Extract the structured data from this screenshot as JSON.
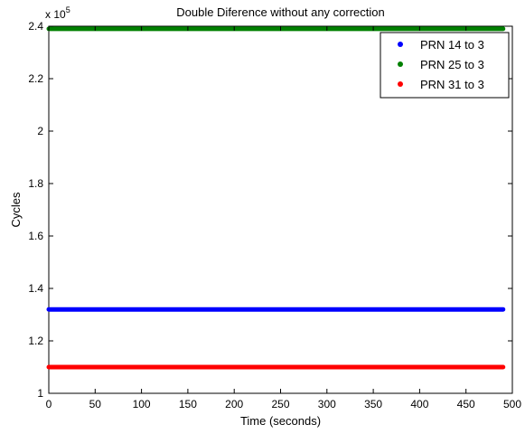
{
  "chart_data": {
    "type": "scatter",
    "title": "Double Diference without any correction",
    "xlabel": "Time (seconds)",
    "ylabel": "Cycles",
    "y_multiplier": {
      "base": "x 10",
      "exponent": "5"
    },
    "xlim": [
      0,
      500
    ],
    "ylim": [
      1.0,
      2.4
    ],
    "y_scale_factor": 100000,
    "x_ticks": [
      0,
      50,
      100,
      150,
      200,
      250,
      300,
      350,
      400,
      450,
      500
    ],
    "y_ticks": [
      1,
      1.2,
      1.4,
      1.6,
      1.8,
      2,
      2.2,
      2.4
    ],
    "y_tick_labels": [
      "1",
      "1.2",
      "1.4",
      "1.6",
      "1.8",
      "2",
      "2.2",
      "2.4"
    ],
    "grid": false,
    "legend_position": "top-right",
    "x_range": [
      0,
      490
    ],
    "series": [
      {
        "name": "PRN 14 to 3",
        "color": "#0000ff",
        "y": 1.32
      },
      {
        "name": "PRN 25 to 3",
        "color": "#008000",
        "y": 2.39
      },
      {
        "name": "PRN 31 to 3",
        "color": "#ff0000",
        "y": 1.1
      }
    ]
  }
}
